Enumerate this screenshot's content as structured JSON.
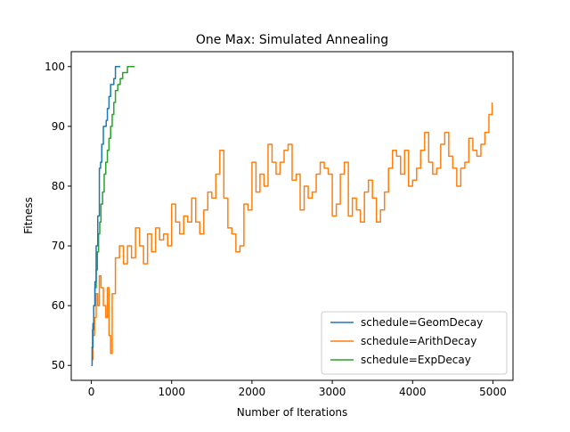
{
  "chart_data": {
    "type": "line",
    "title": "One Max: Simulated Annealing",
    "xlabel": "Number of Iterations",
    "ylabel": "Fitness",
    "xlim": [
      -250,
      5250
    ],
    "ylim": [
      47.5,
      102.5
    ],
    "x_ticks": [
      0,
      1000,
      2000,
      3000,
      4000,
      5000
    ],
    "y_ticks": [
      50,
      60,
      70,
      80,
      90,
      100
    ],
    "x_tick_labels": [
      "0",
      "1000",
      "2000",
      "3000",
      "4000",
      "5000"
    ],
    "y_tick_labels": [
      "50",
      "60",
      "70",
      "80",
      "90",
      "100"
    ],
    "grid": false,
    "legend_position": "lower-right",
    "series": [
      {
        "name": "schedule=GeomDecay",
        "color": "#1f77b4",
        "x": [
          0,
          10,
          20,
          30,
          45,
          60,
          80,
          100,
          115,
          130,
          150,
          170,
          185,
          200,
          220,
          240,
          260,
          280,
          300,
          320,
          340,
          360
        ],
        "y": [
          50,
          53,
          57,
          60,
          64,
          70,
          75,
          83,
          84,
          87,
          90,
          90,
          91,
          93,
          95,
          97,
          97,
          98,
          100,
          100,
          100,
          100
        ]
      },
      {
        "name": "schedule=ArithDecay",
        "color": "#ff7f0e",
        "x": [
          0,
          20,
          40,
          60,
          80,
          100,
          120,
          150,
          180,
          200,
          220,
          240,
          260,
          300,
          350,
          400,
          450,
          500,
          550,
          600,
          650,
          700,
          750,
          800,
          850,
          900,
          950,
          1000,
          1050,
          1100,
          1150,
          1200,
          1250,
          1300,
          1350,
          1400,
          1450,
          1500,
          1550,
          1600,
          1650,
          1700,
          1750,
          1800,
          1850,
          1900,
          1950,
          2000,
          2050,
          2100,
          2150,
          2200,
          2250,
          2300,
          2350,
          2400,
          2450,
          2500,
          2550,
          2600,
          2650,
          2700,
          2750,
          2800,
          2850,
          2900,
          2950,
          3000,
          3050,
          3100,
          3150,
          3200,
          3250,
          3300,
          3350,
          3400,
          3450,
          3500,
          3550,
          3600,
          3650,
          3700,
          3750,
          3800,
          3850,
          3900,
          3950,
          4000,
          4050,
          4100,
          4150,
          4200,
          4250,
          4300,
          4350,
          4400,
          4450,
          4500,
          4550,
          4600,
          4650,
          4700,
          4750,
          4800,
          4850,
          4900,
          4950,
          4990
        ],
        "y": [
          51,
          55,
          58,
          62,
          60,
          65,
          63,
          60,
          58,
          63,
          55,
          52,
          62,
          68,
          70,
          67,
          70,
          68,
          73,
          70,
          67,
          72,
          69,
          73,
          71,
          72,
          70,
          77,
          74,
          72,
          75,
          74,
          78,
          74,
          72,
          76,
          79,
          78,
          82,
          86,
          78,
          73,
          72,
          69,
          70,
          77,
          76,
          84,
          79,
          82,
          80,
          87,
          84,
          82,
          84,
          86,
          87,
          81,
          82,
          76,
          80,
          78,
          79,
          82,
          84,
          83,
          82,
          75,
          77,
          82,
          84,
          75,
          78,
          76,
          74,
          79,
          81,
          78,
          74,
          76,
          79,
          83,
          86,
          85,
          82,
          86,
          80,
          81,
          83,
          86,
          89,
          84,
          82,
          83,
          87,
          89,
          85,
          83,
          80,
          83,
          84,
          88,
          86,
          85,
          87,
          89,
          92,
          94
        ]
      },
      {
        "name": "schedule=ExpDecay",
        "color": "#2ca02c",
        "x": [
          0,
          15,
          30,
          45,
          60,
          75,
          90,
          105,
          120,
          140,
          160,
          180,
          200,
          220,
          240,
          260,
          280,
          300,
          330,
          360,
          390,
          420,
          450,
          480,
          510,
          540
        ],
        "y": [
          53,
          56,
          60,
          63,
          66,
          69,
          72,
          74,
          77,
          79,
          82,
          84,
          86,
          88,
          90,
          92,
          94,
          96,
          97,
          98,
          99,
          99,
          100,
          100,
          100,
          100
        ]
      }
    ]
  }
}
